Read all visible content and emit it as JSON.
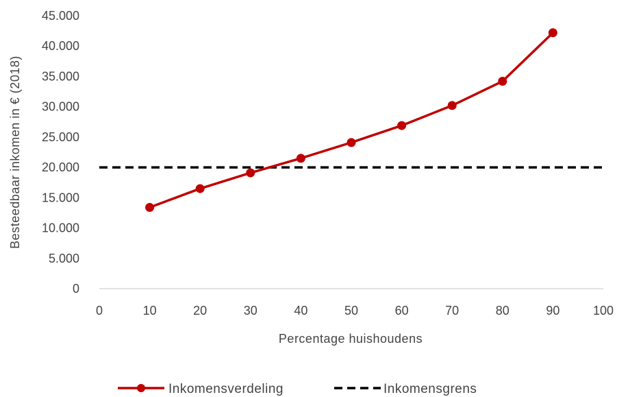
{
  "chart_data": {
    "type": "line",
    "xlabel": "Percentage huishoudens",
    "ylabel": "Besteedbaar  inkomen in € (2018)",
    "xlim": [
      0,
      100
    ],
    "ylim": [
      0,
      45000
    ],
    "x_ticks": [
      "0",
      "10",
      "20",
      "30",
      "40",
      "50",
      "60",
      "70",
      "80",
      "90",
      "100"
    ],
    "y_ticks": [
      "0",
      "5.000",
      "10.000",
      "15.000",
      "20.000",
      "25.000",
      "30.000",
      "35.000",
      "40.000",
      "45.000"
    ],
    "grid": false,
    "legend_position": "bottom",
    "series": [
      {
        "name": "Inkomensverdeling",
        "color": "#c00000",
        "style": "solid-with-markers",
        "x": [
          10,
          20,
          30,
          40,
          50,
          60,
          70,
          80,
          90
        ],
        "y": [
          13400,
          16500,
          19100,
          21500,
          24100,
          26900,
          30200,
          34200,
          42200
        ]
      },
      {
        "name": "Inkomensgrens",
        "color": "#000000",
        "style": "dashed",
        "x": [
          0,
          100
        ],
        "y": [
          20000,
          20000
        ]
      }
    ]
  }
}
